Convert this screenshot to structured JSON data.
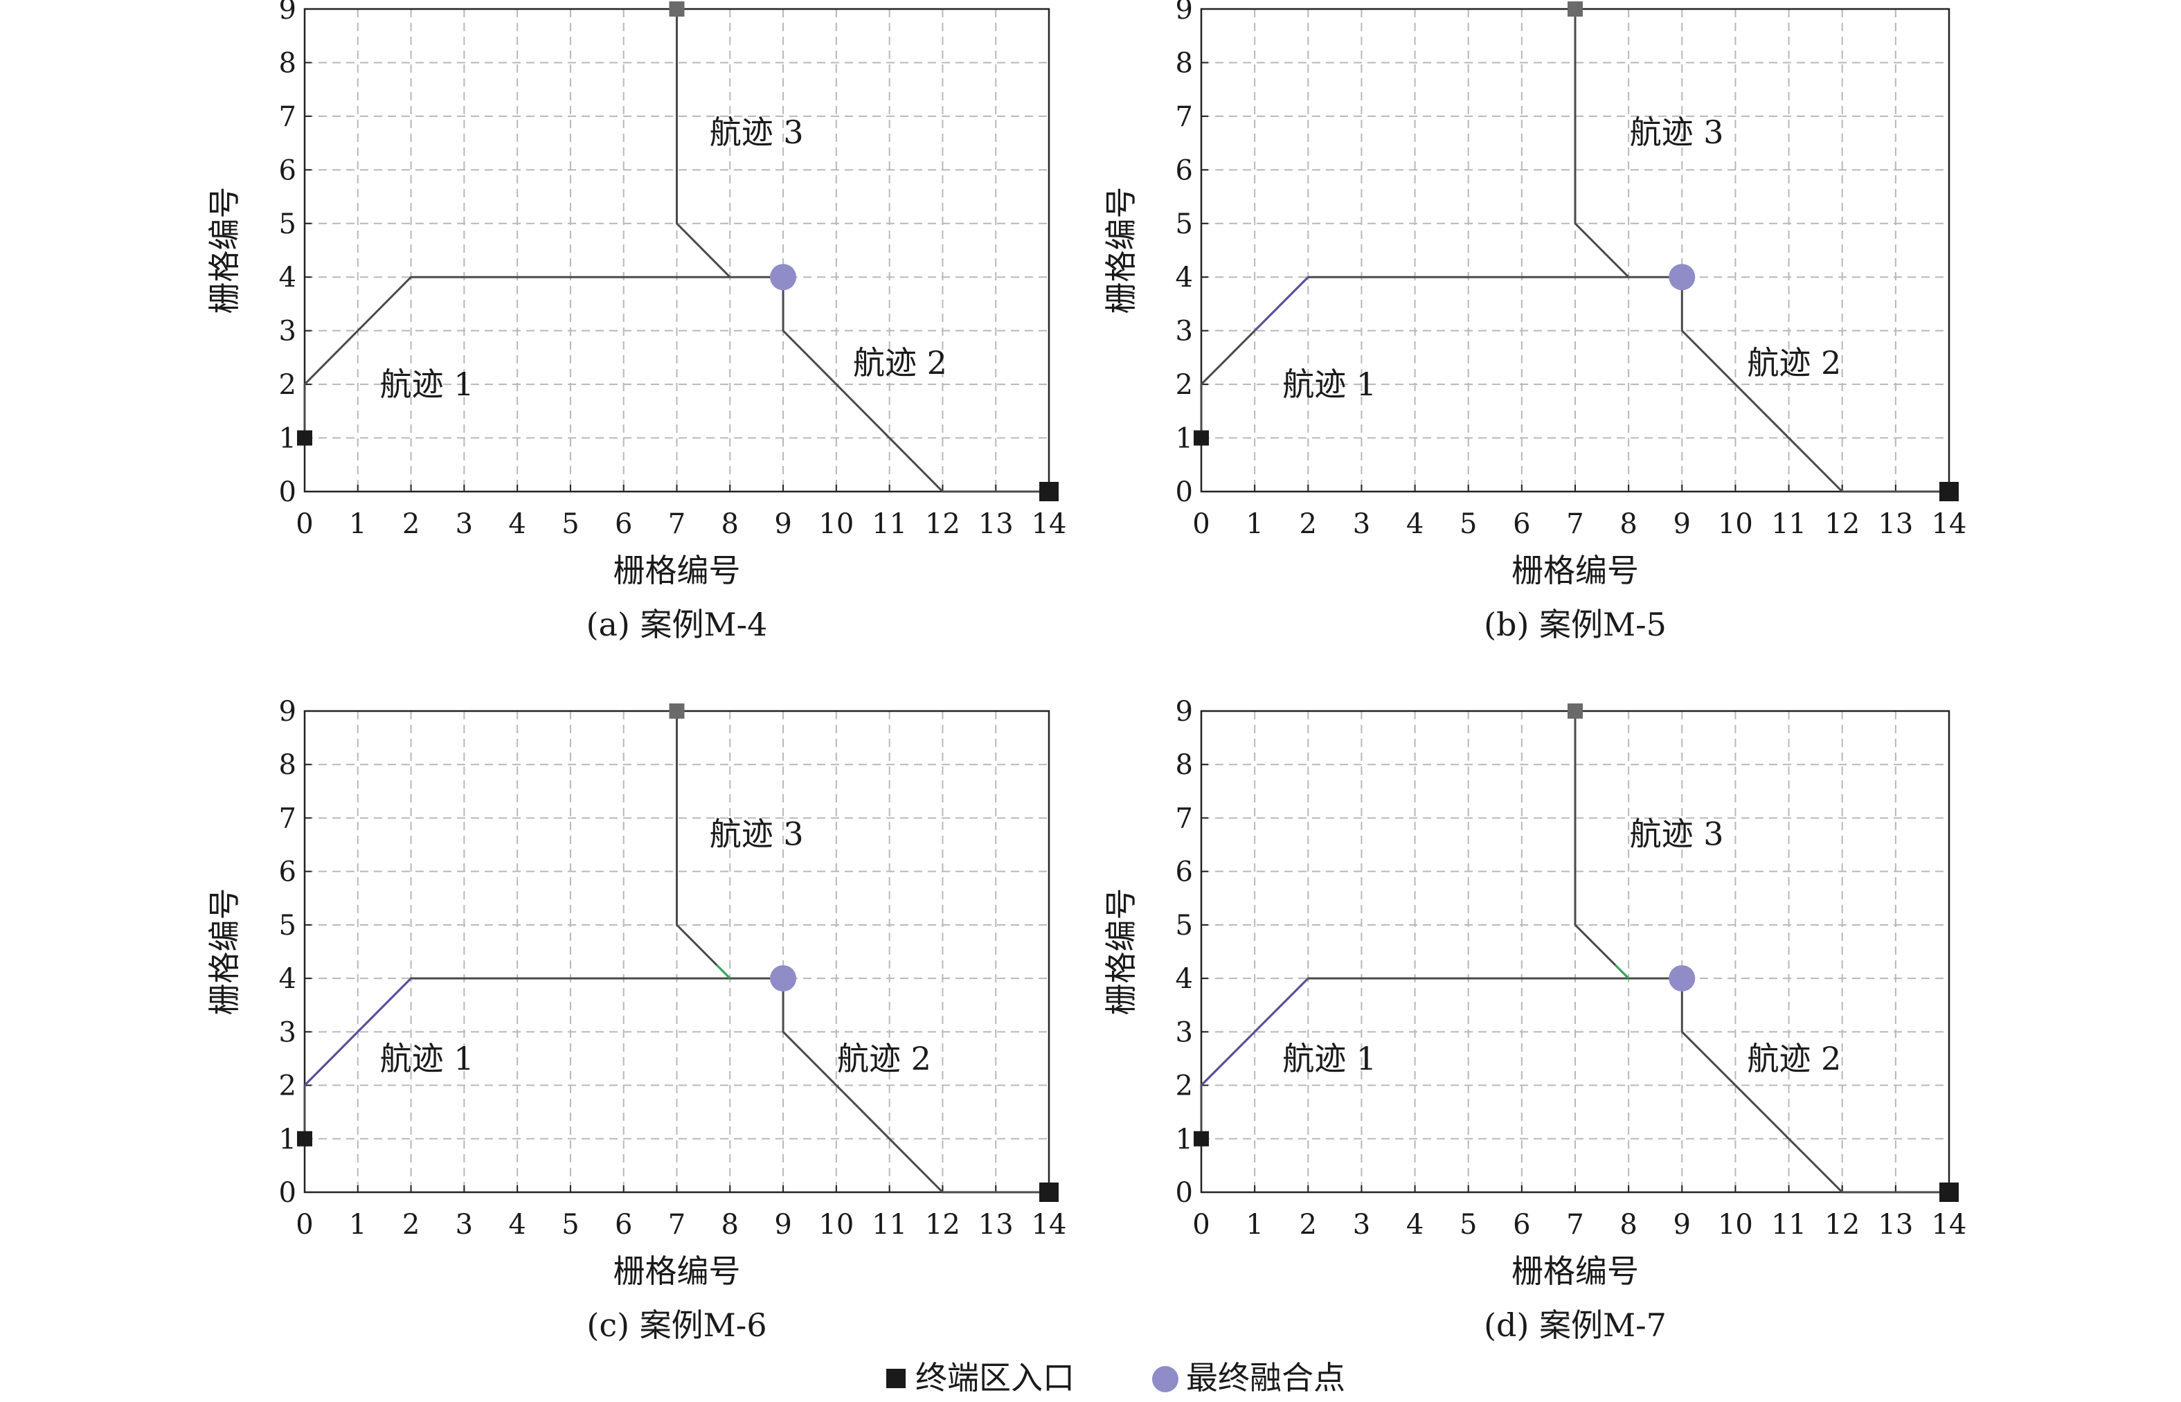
{
  "legend": {
    "terminal_entry": "终端区入口",
    "final_merge_point": "最终融合点"
  },
  "colors": {
    "terminal_marker": "#1a1a1a",
    "start_marker_track3": "#6a6a6a",
    "merge_point": "#8f8cc8",
    "route": "#4a4a4a",
    "route_purple": "#5a4f9e",
    "route_green": "#3aa55a",
    "grid": "#b8b8b8"
  },
  "chart_data": [
    {
      "type": "line",
      "caption": "(a) 案例M-4",
      "xlabel": "栅格编号",
      "ylabel": "栅格编号",
      "xlim": [
        0,
        14
      ],
      "ylim": [
        0,
        9
      ],
      "xticks": [
        0,
        1,
        2,
        3,
        4,
        5,
        6,
        7,
        8,
        9,
        10,
        11,
        12,
        13,
        14
      ],
      "yticks": [
        0,
        1,
        2,
        3,
        4,
        5,
        6,
        7,
        8,
        9
      ],
      "grid": true,
      "series": [
        {
          "name": "航迹 1",
          "x": [
            0,
            0,
            2,
            8,
            9
          ],
          "y": [
            1,
            2,
            4,
            4,
            4
          ],
          "highlight": "none",
          "label_at": [
            2.3,
            2
          ]
        },
        {
          "name": "航迹 2",
          "x": [
            14,
            12,
            9,
            9
          ],
          "y": [
            0,
            0,
            3,
            4
          ],
          "label_at": [
            11.2,
            2.4
          ]
        },
        {
          "name": "航迹 3",
          "x": [
            7,
            7,
            8
          ],
          "y": [
            9,
            5,
            4
          ],
          "highlight": "none",
          "label_at": [
            8.5,
            6.7
          ]
        }
      ],
      "terminal_entries": [
        [
          0,
          1
        ],
        [
          14,
          0
        ]
      ],
      "track3_start": [
        7,
        9
      ],
      "merge_point": [
        9,
        4
      ]
    },
    {
      "type": "line",
      "caption": "(b) 案例M-5",
      "xlabel": "栅格编号",
      "ylabel": "栅格编号",
      "xlim": [
        0,
        14
      ],
      "ylim": [
        0,
        9
      ],
      "xticks": [
        0,
        1,
        2,
        3,
        4,
        5,
        6,
        7,
        8,
        9,
        10,
        11,
        12,
        13,
        14
      ],
      "yticks": [
        0,
        1,
        2,
        3,
        4,
        5,
        6,
        7,
        8,
        9
      ],
      "grid": true,
      "series": [
        {
          "name": "航迹 1",
          "x": [
            0,
            0,
            2,
            8,
            9
          ],
          "y": [
            1,
            2,
            4,
            4,
            4
          ],
          "highlight": "purple-partial",
          "label_at": [
            2.4,
            2
          ]
        },
        {
          "name": "航迹 2",
          "x": [
            14,
            12,
            9,
            9
          ],
          "y": [
            0,
            0,
            3,
            4
          ],
          "label_at": [
            11.1,
            2.4
          ]
        },
        {
          "name": "航迹 3",
          "x": [
            7,
            7,
            8
          ],
          "y": [
            9,
            5,
            4
          ],
          "highlight": "none",
          "label_at": [
            8.9,
            6.7
          ]
        }
      ],
      "terminal_entries": [
        [
          0,
          1
        ],
        [
          14,
          0
        ]
      ],
      "track3_start": [
        7,
        9
      ],
      "merge_point": [
        9,
        4
      ]
    },
    {
      "type": "line",
      "caption": "(c) 案例M-6",
      "xlabel": "栅格编号",
      "ylabel": "栅格编号",
      "xlim": [
        0,
        14
      ],
      "ylim": [
        0,
        9
      ],
      "xticks": [
        0,
        1,
        2,
        3,
        4,
        5,
        6,
        7,
        8,
        9,
        10,
        11,
        12,
        13,
        14
      ],
      "yticks": [
        0,
        1,
        2,
        3,
        4,
        5,
        6,
        7,
        8,
        9
      ],
      "grid": true,
      "series": [
        {
          "name": "航迹 1",
          "x": [
            0,
            0,
            2,
            8,
            9
          ],
          "y": [
            1,
            2,
            4,
            4,
            4
          ],
          "highlight": "purple",
          "label_at": [
            2.3,
            2.5
          ]
        },
        {
          "name": "航迹 2",
          "x": [
            14,
            12,
            9,
            9
          ],
          "y": [
            0,
            0,
            3,
            4
          ],
          "label_at": [
            10.9,
            2.5
          ]
        },
        {
          "name": "航迹 3",
          "x": [
            7,
            7,
            8
          ],
          "y": [
            9,
            5,
            4
          ],
          "highlight": "green",
          "label_at": [
            8.5,
            6.7
          ]
        }
      ],
      "terminal_entries": [
        [
          0,
          1
        ],
        [
          14,
          0
        ]
      ],
      "track3_start": [
        7,
        9
      ],
      "merge_point": [
        9,
        4
      ]
    },
    {
      "type": "line",
      "caption": "(d) 案例M-7",
      "xlabel": "栅格编号",
      "ylabel": "栅格编号",
      "xlim": [
        0,
        14
      ],
      "ylim": [
        0,
        9
      ],
      "xticks": [
        0,
        1,
        2,
        3,
        4,
        5,
        6,
        7,
        8,
        9,
        10,
        11,
        12,
        13,
        14
      ],
      "yticks": [
        0,
        1,
        2,
        3,
        4,
        5,
        6,
        7,
        8,
        9
      ],
      "grid": true,
      "series": [
        {
          "name": "航迹 1",
          "x": [
            0,
            0,
            2,
            8,
            9
          ],
          "y": [
            1,
            2,
            4,
            4,
            4
          ],
          "highlight": "purple",
          "label_at": [
            2.4,
            2.5
          ]
        },
        {
          "name": "航迹 2",
          "x": [
            14,
            12,
            9,
            9
          ],
          "y": [
            0,
            0,
            3,
            4
          ],
          "label_at": [
            11.1,
            2.5
          ]
        },
        {
          "name": "航迹 3",
          "x": [
            7,
            7,
            8
          ],
          "y": [
            9,
            5,
            4
          ],
          "highlight": "green",
          "label_at": [
            8.9,
            6.7
          ]
        }
      ],
      "terminal_entries": [
        [
          0,
          1
        ],
        [
          14,
          0
        ]
      ],
      "track3_start": [
        7,
        9
      ],
      "merge_point": [
        9,
        4
      ]
    }
  ]
}
